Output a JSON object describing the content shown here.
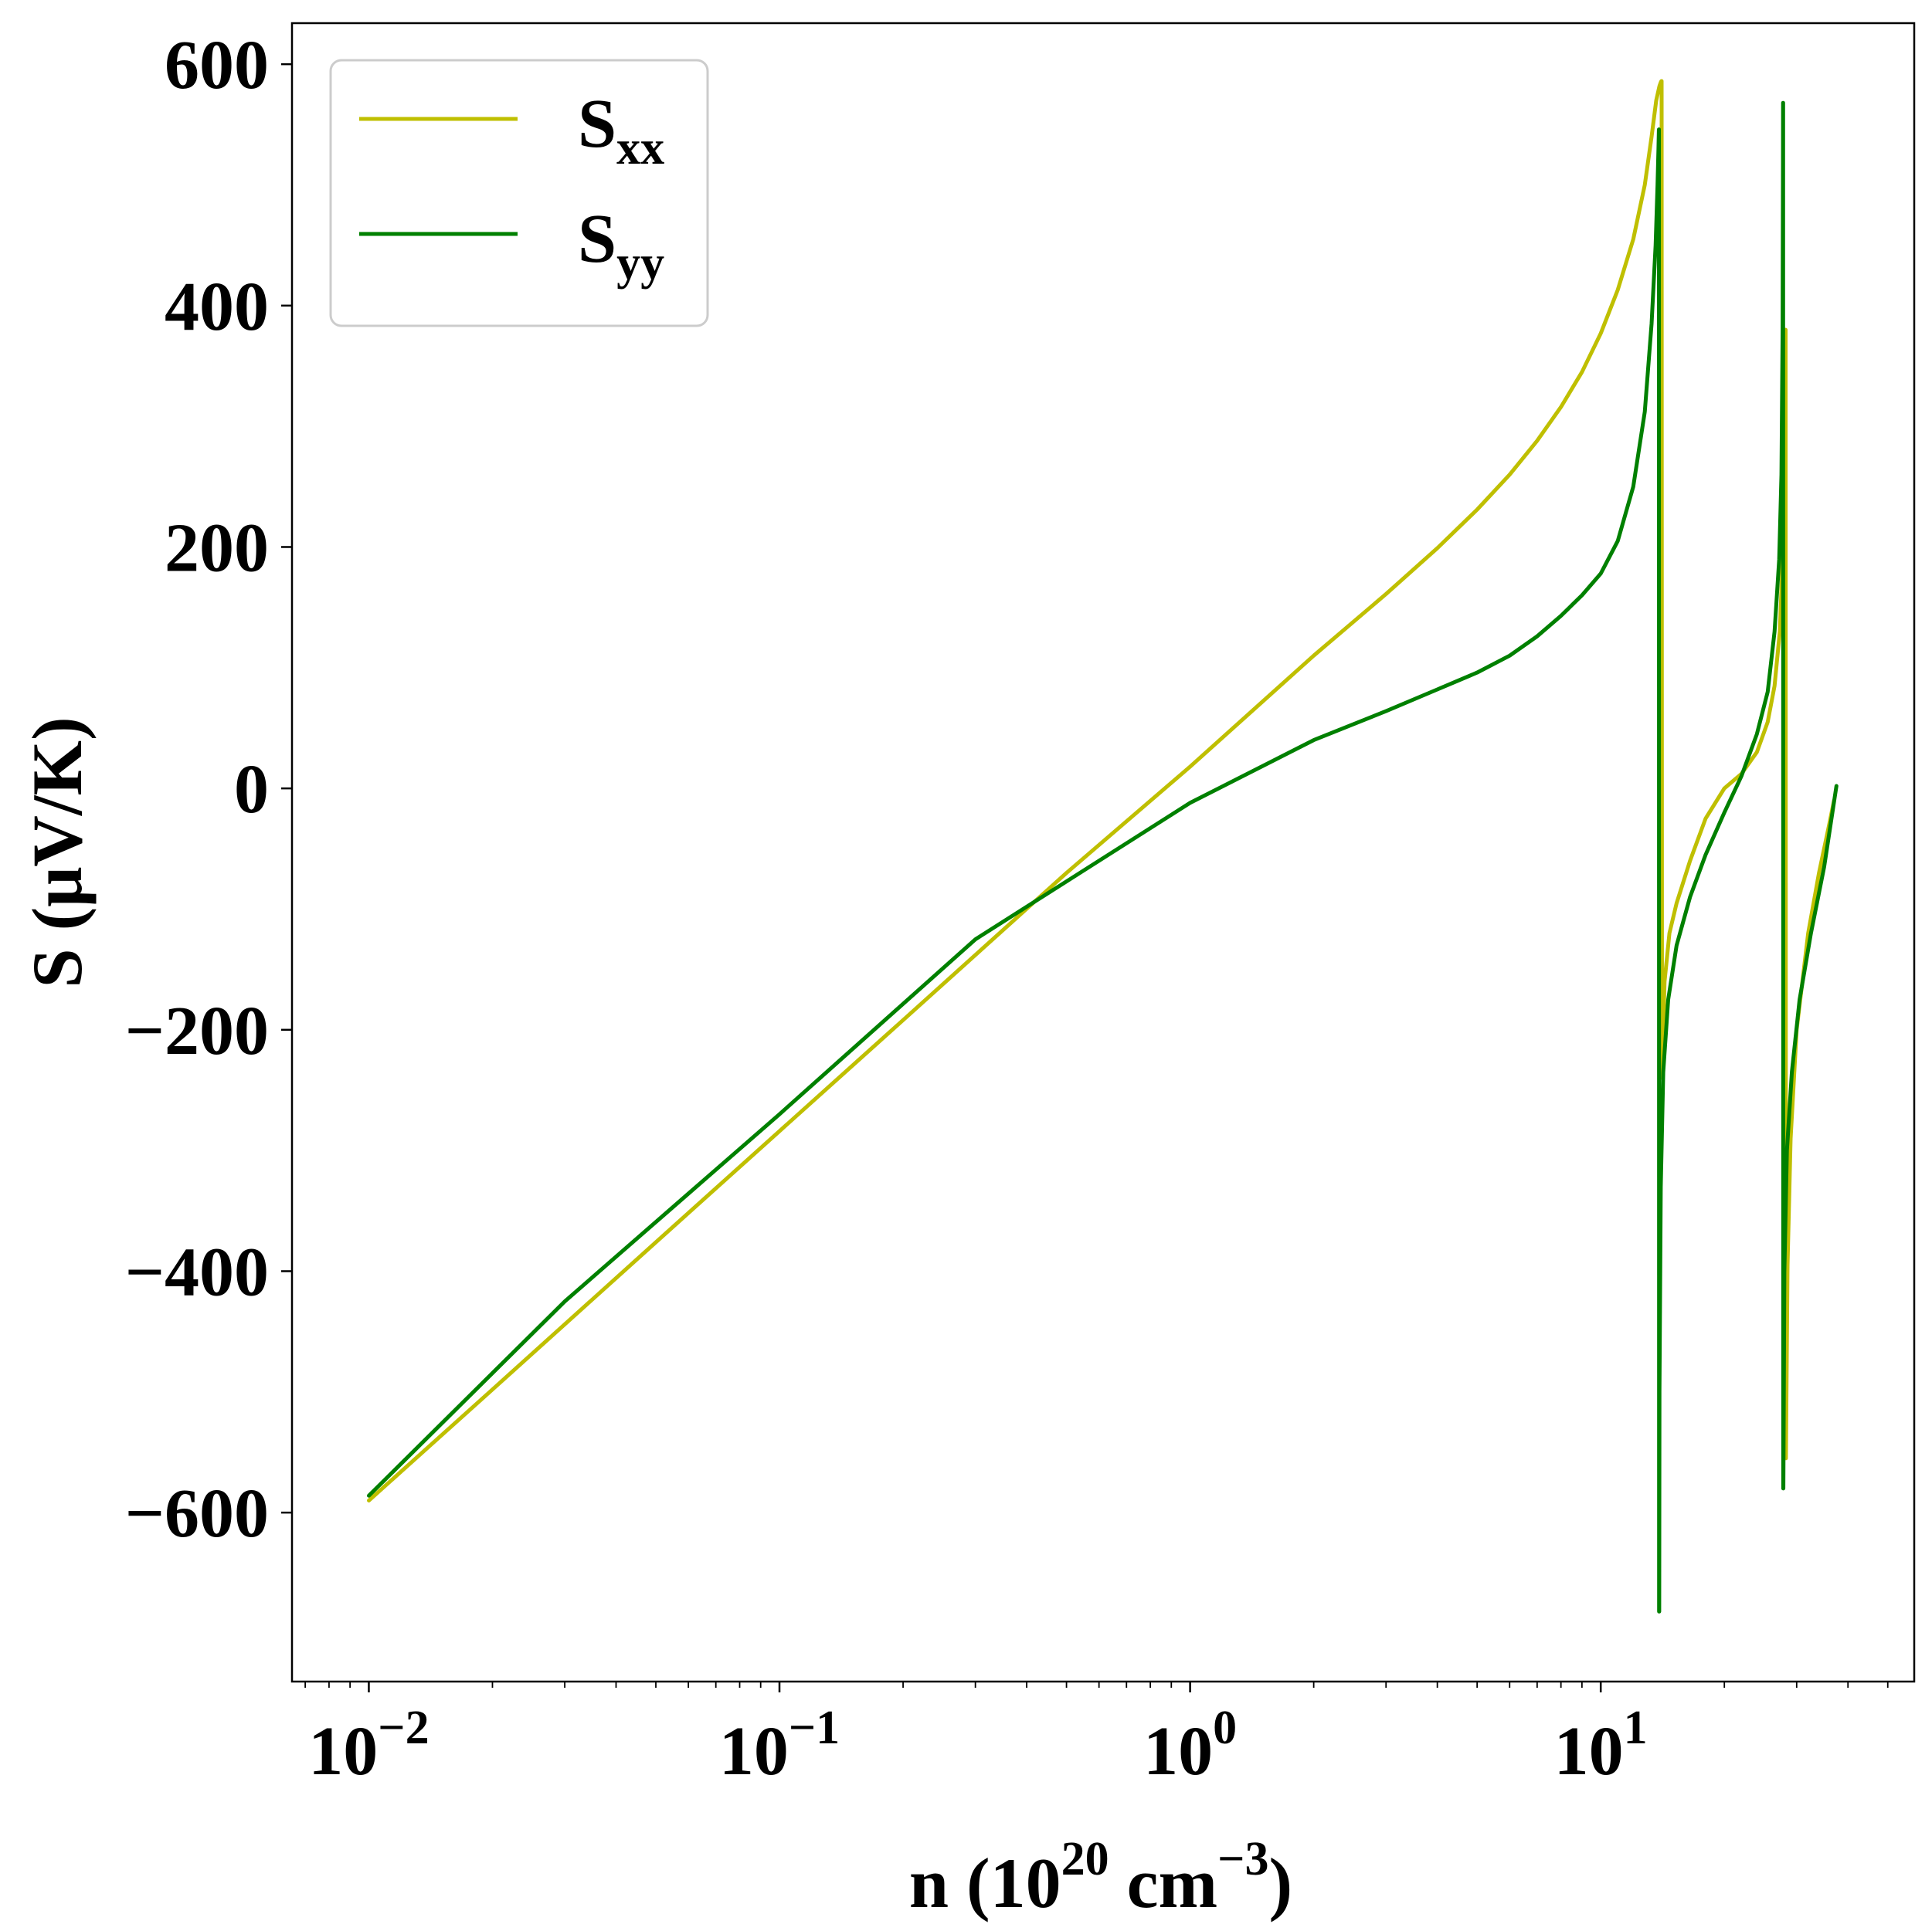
{
  "chart_data": {
    "type": "line",
    "title": "",
    "xlabel": {
      "base": "n (10",
      "exp1": "20",
      "mid": " cm",
      "exp2": "−3",
      "end": ")"
    },
    "ylabel": "S (μV/K)",
    "xscale": "log",
    "xlim": [
      0.0065,
      58
    ],
    "ylim": [
      -740,
      634
    ],
    "xticks": [
      {
        "value": 0.01,
        "base": "10",
        "exp": "−2"
      },
      {
        "value": 0.1,
        "base": "10",
        "exp": "−1"
      },
      {
        "value": 1,
        "base": "10",
        "exp": "0"
      },
      {
        "value": 10,
        "base": "10",
        "exp": "1"
      }
    ],
    "yticks": [
      {
        "value": 600,
        "label": "600"
      },
      {
        "value": 400,
        "label": "400"
      },
      {
        "value": 200,
        "label": "200"
      },
      {
        "value": 0,
        "label": "0"
      },
      {
        "value": -200,
        "label": "−200"
      },
      {
        "value": -400,
        "label": "−400"
      },
      {
        "value": -600,
        "label": "−600"
      }
    ],
    "grid": false,
    "legend_position": "top-left",
    "series": [
      {
        "name": "S",
        "name_sub": "xx",
        "color": "#bfbf00",
        "x": [
          0.01,
          0.02,
          0.05,
          0.1,
          0.2,
          0.5,
          1,
          2,
          3,
          4,
          5,
          6,
          7,
          8,
          9,
          10,
          11,
          12,
          12.8,
          13.3,
          13.65,
          13.9,
          14.0,
          14.05,
          14.07,
          14.1,
          14.3,
          14.7,
          15.3,
          16.5,
          18,
          20,
          22,
          24,
          25.5,
          26.5,
          27.3,
          27.8,
          28.0,
          28.15,
          28.2,
          28.25,
          28.5,
          29,
          30,
          32,
          34,
          36,
          37
        ],
        "y": [
          -590,
          -498,
          -376,
          -284,
          -192,
          -70,
          18,
          110,
          161,
          199,
          231,
          260,
          288,
          316,
          345,
          377,
          413,
          455,
          500,
          540,
          570,
          582,
          585,
          586,
          586,
          -240,
          -160,
          -120,
          -95,
          -60,
          -25,
          0,
          12,
          30,
          55,
          85,
          130,
          200,
          280,
          380,
          380,
          -555,
          -395,
          -290,
          -200,
          -120,
          -70,
          -30,
          -10
        ]
      },
      {
        "name": "S",
        "name_sub": "yy",
        "color": "#008000",
        "x": [
          0.01,
          0.03,
          0.1,
          0.3,
          1,
          2,
          3,
          4,
          5,
          6,
          7,
          8,
          9,
          10,
          11,
          12,
          12.8,
          13.3,
          13.6,
          13.75,
          13.82,
          13.85,
          13.86,
          13.87,
          13.88,
          13.9,
          14.0,
          14.2,
          14.6,
          15.3,
          16.5,
          18,
          20,
          22,
          24,
          25.5,
          26.5,
          27.2,
          27.55,
          27.72,
          27.78,
          27.8,
          27.81,
          27.82,
          27.85,
          28.0,
          28.4,
          29.2,
          30.5,
          32.5,
          35,
          37.5
        ],
        "y": [
          -586,
          -425,
          -270,
          -125,
          -12,
          40,
          64,
          82,
          96,
          110,
          126,
          143,
          160,
          178,
          205,
          250,
          312,
          385,
          450,
          500,
          530,
          545,
          546,
          -682,
          -682,
          -500,
          -330,
          -235,
          -175,
          -130,
          -90,
          -55,
          -20,
          10,
          45,
          80,
          130,
          190,
          260,
          380,
          520,
          568,
          568,
          -580,
          -580,
          -400,
          -300,
          -235,
          -175,
          -120,
          -65,
          2
        ]
      }
    ]
  }
}
